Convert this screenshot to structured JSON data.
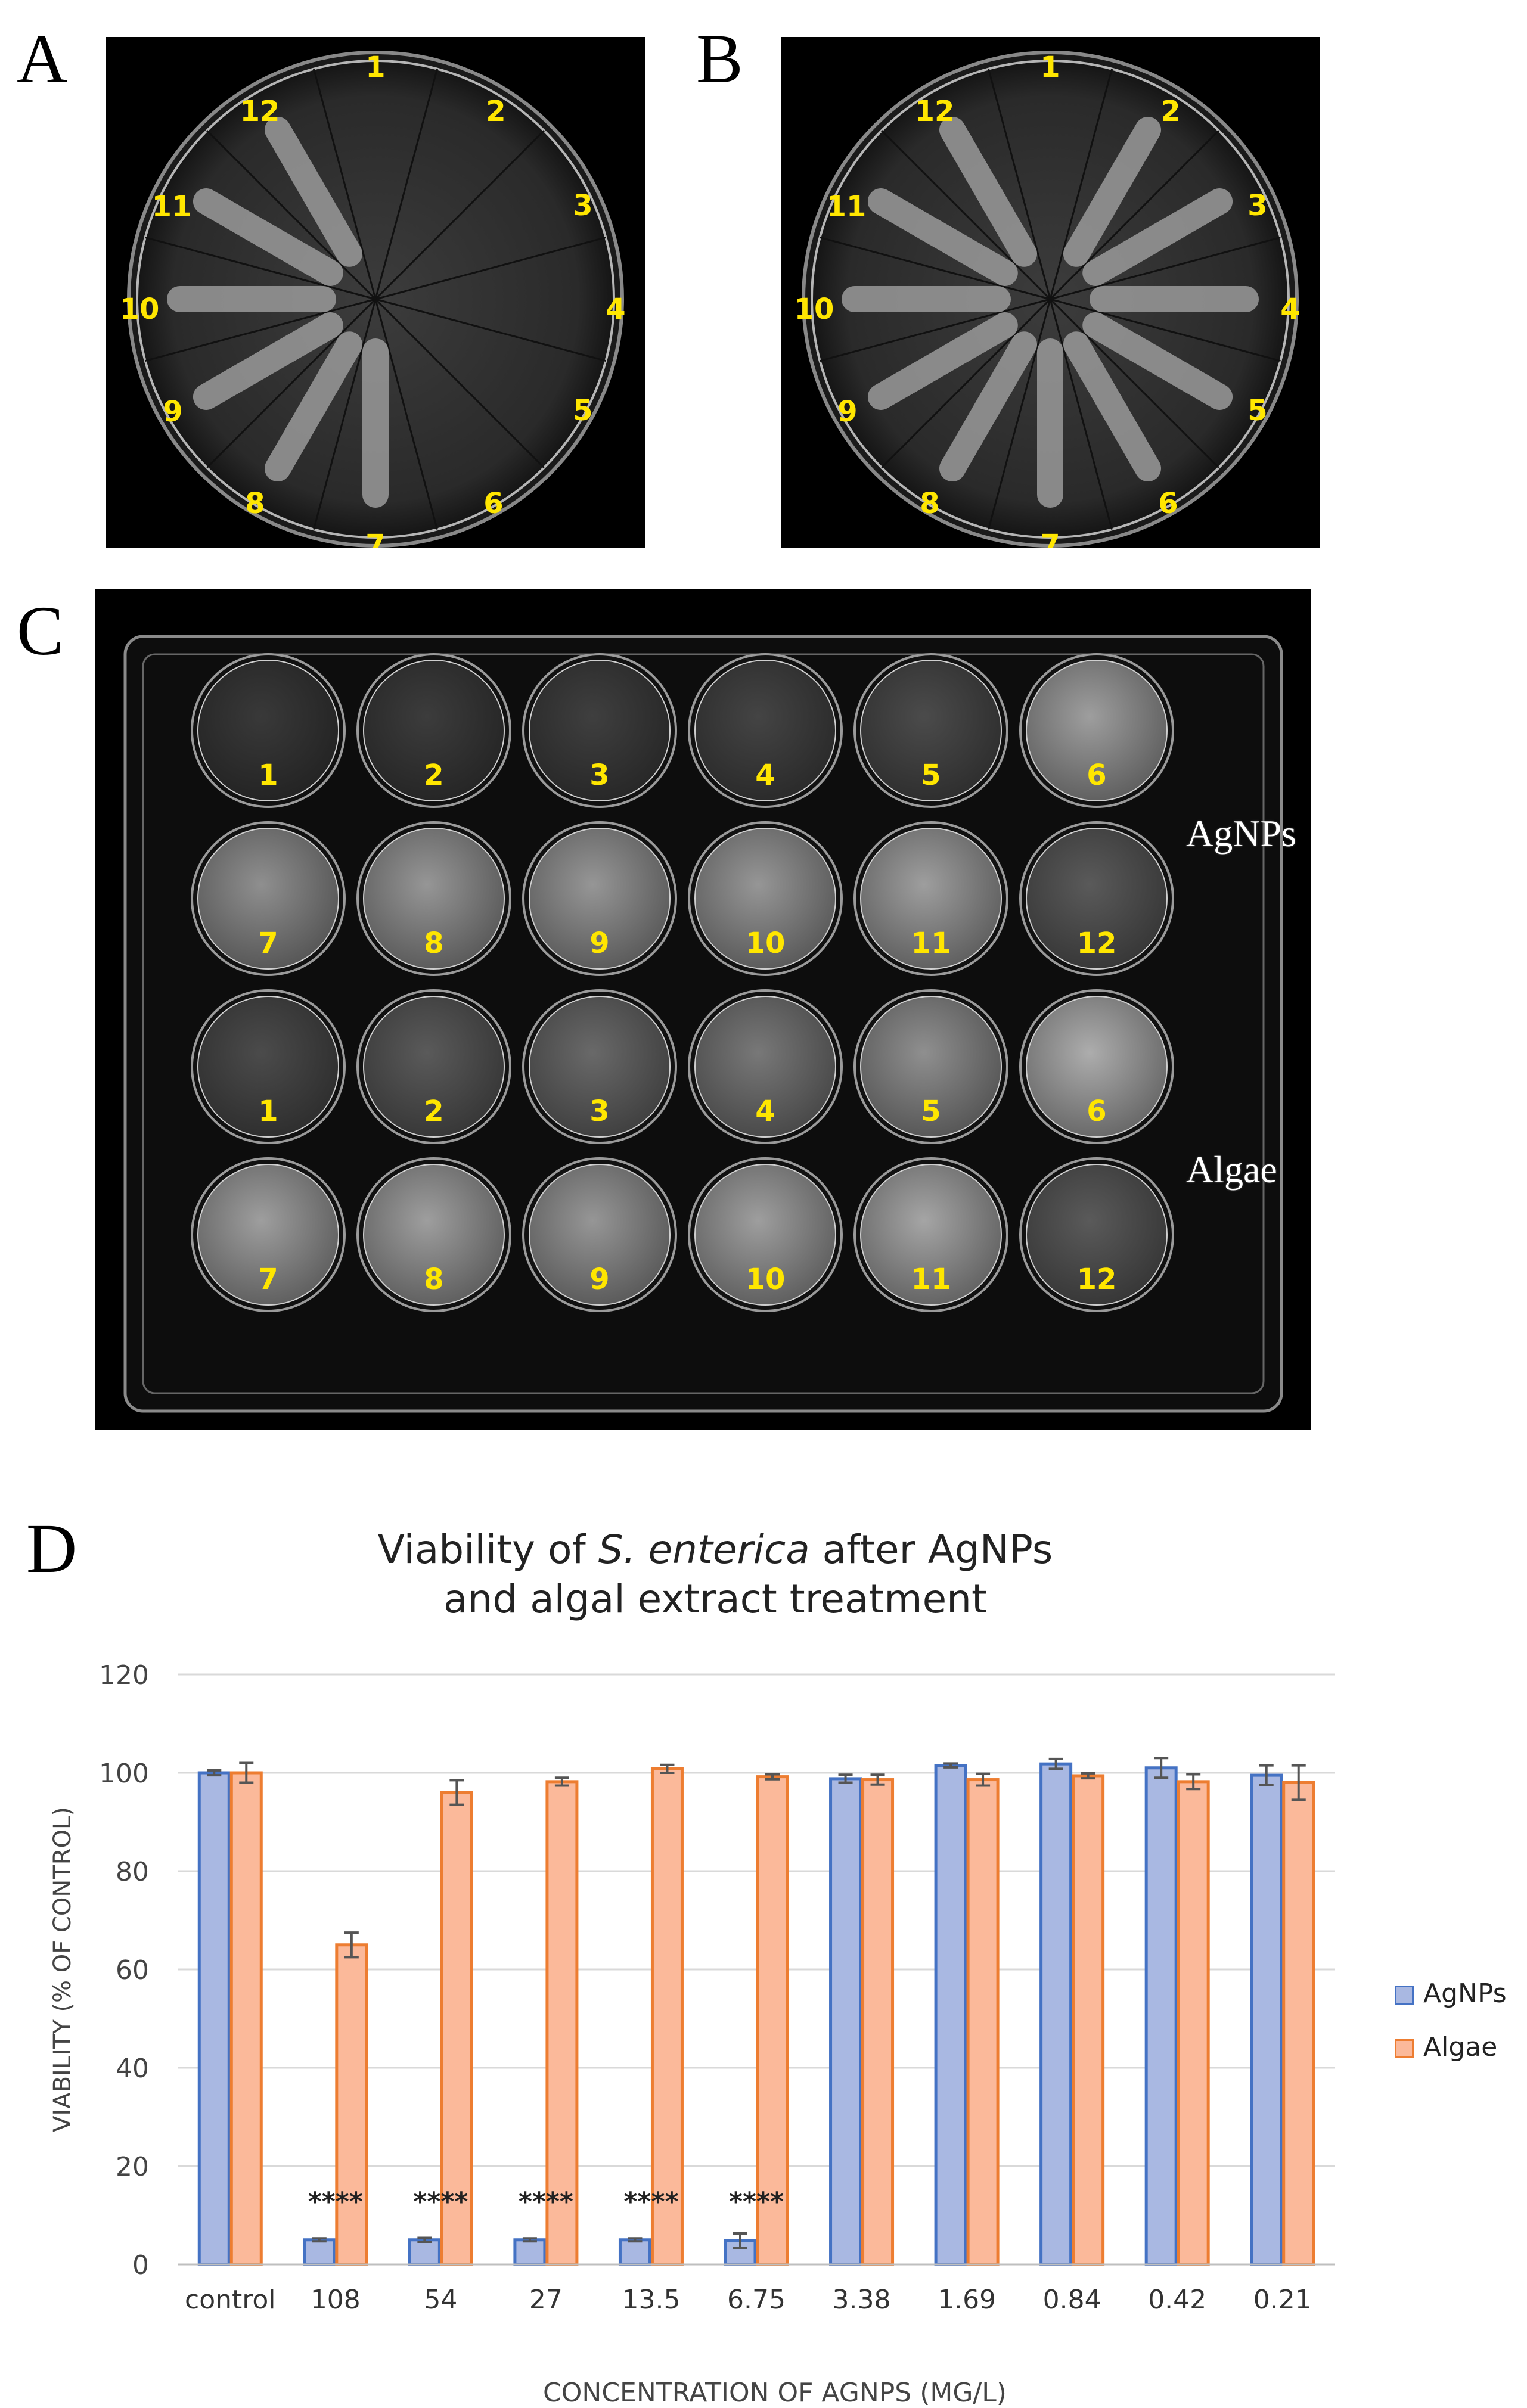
{
  "panels": {
    "a_label": "A",
    "b_label": "B",
    "c_label": "C",
    "d_label": "D"
  },
  "plate_sections": [
    "1",
    "2",
    "3",
    "4",
    "5",
    "6",
    "7",
    "8",
    "9",
    "10",
    "11",
    "12"
  ],
  "well_plate": {
    "row_labels": [
      "AgNPs",
      "Algae"
    ],
    "well_numbers": [
      "1",
      "2",
      "3",
      "4",
      "5",
      "6",
      "7",
      "8",
      "9",
      "10",
      "11",
      "12"
    ]
  },
  "chart_title_line1_pre": "Viability of ",
  "chart_title_line1_italic": "S. enterica",
  "chart_title_line1_post": " after AgNPs",
  "chart_title_line2": "and algal extract treatment",
  "chart_data": {
    "type": "bar",
    "title": "Viability of S. enterica after AgNPs and algal extract treatment",
    "xlabel": "CONCENTRATION OF AGNPS (MG/L)",
    "ylabel": "VIABILITY (% OF CONTROL)",
    "ylim": [
      0,
      120
    ],
    "yticks": [
      "0",
      "20",
      "40",
      "60",
      "80",
      "100",
      "120"
    ],
    "grid": true,
    "legend_position": "right",
    "categories": [
      "control",
      "108",
      "54",
      "27",
      "13.5",
      "6.75",
      "3.38",
      "1.69",
      "0.84",
      "0.42",
      "0.21"
    ],
    "series": [
      {
        "name": "AgNPs",
        "fill": "#a9b8e2",
        "stroke": "#4472c4",
        "values": [
          100,
          5,
          5,
          5,
          5,
          4.8,
          98.8,
          101.5,
          101.8,
          101.0,
          99.5
        ],
        "errors": [
          0.5,
          0.3,
          0.4,
          0.3,
          0.3,
          1.5,
          0.8,
          0.4,
          1.0,
          2.0,
          2.0
        ]
      },
      {
        "name": "Algae",
        "fill": "#fbb99a",
        "stroke": "#ed7d31",
        "values": [
          100,
          65,
          96,
          98.2,
          100.8,
          99.2,
          98.6,
          98.6,
          99.4,
          98.2,
          98
        ],
        "errors": [
          2.0,
          2.5,
          2.5,
          0.8,
          0.8,
          0.5,
          1.0,
          1.2,
          0.5,
          1.5,
          3.5
        ]
      }
    ],
    "annotations": [
      {
        "category": "108",
        "text": "****"
      },
      {
        "category": "54",
        "text": "****"
      },
      {
        "category": "27",
        "text": "****"
      },
      {
        "category": "13.5",
        "text": "****"
      },
      {
        "category": "6.75",
        "text": "****"
      }
    ]
  }
}
